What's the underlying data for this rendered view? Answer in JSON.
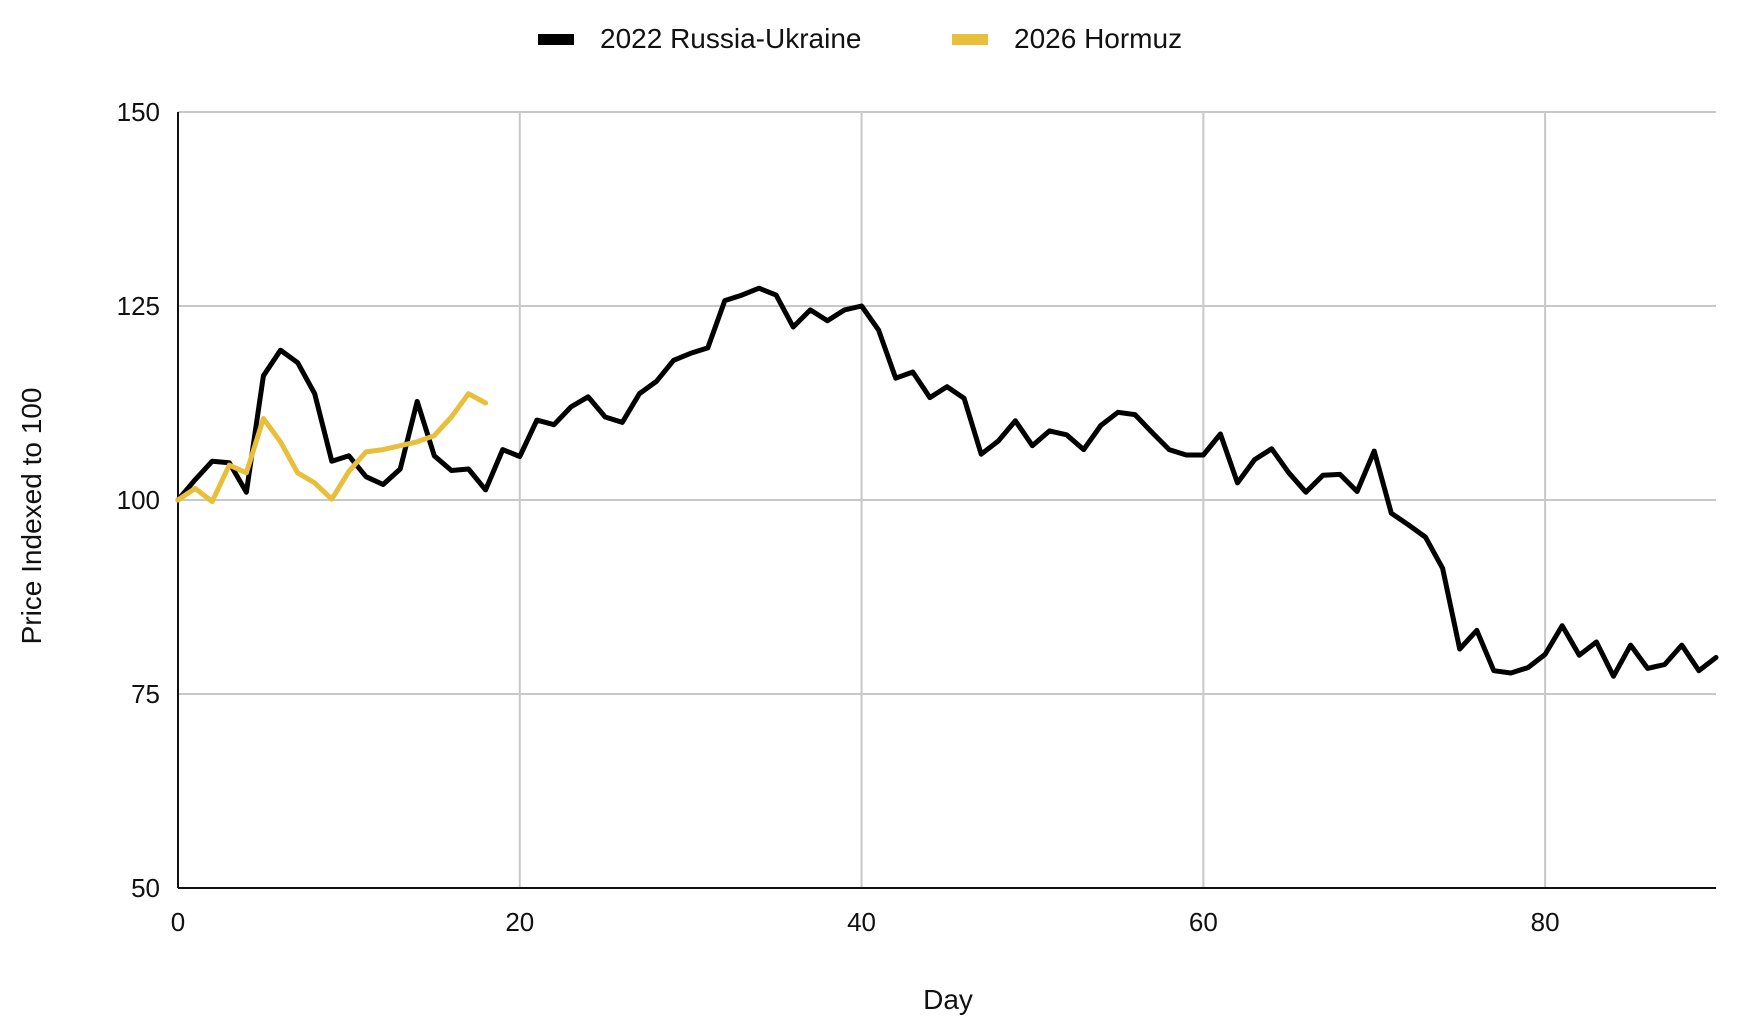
{
  "chart_data": {
    "type": "line",
    "title": "",
    "xlabel": "Day",
    "ylabel": "Price Indexed to 100",
    "xlim": [
      0,
      90
    ],
    "ylim": [
      50,
      150
    ],
    "x_ticks": [
      0,
      20,
      40,
      60,
      80
    ],
    "y_ticks": [
      50,
      75,
      100,
      125,
      150
    ],
    "grid": true,
    "legend_position": "top-center",
    "series": [
      {
        "name": "2022 Russia-Ukraine",
        "color": "#000000",
        "x": [
          0,
          1,
          2,
          3,
          4,
          5,
          6,
          7,
          8,
          9,
          10,
          11,
          12,
          13,
          14,
          15,
          16,
          17,
          18,
          19,
          20,
          21,
          22,
          23,
          24,
          25,
          26,
          27,
          28,
          29,
          30,
          31,
          32,
          33,
          34,
          35,
          36,
          37,
          38,
          39,
          40,
          41,
          42,
          43,
          44,
          45,
          46,
          47,
          48,
          49,
          50,
          51,
          52,
          53,
          54,
          55,
          56,
          57,
          58,
          59,
          60,
          61,
          62,
          63,
          64,
          65,
          66,
          67,
          68,
          69,
          70,
          71,
          72,
          73,
          74,
          75,
          76,
          77,
          78,
          79,
          80,
          81,
          82,
          83,
          84,
          85,
          86,
          87,
          88,
          89,
          90
        ],
        "values": [
          100,
          102.6,
          105,
          104.8,
          101,
          116,
          119.3,
          117.7,
          113.7,
          105,
          105.7,
          103,
          102,
          104,
          112.7,
          105.7,
          103.8,
          104,
          101.3,
          106.5,
          105.6,
          110.3,
          109.7,
          112,
          113.3,
          110.7,
          110,
          113.7,
          115.3,
          118,
          118.9,
          119.6,
          125.7,
          126.4,
          127.3,
          126.4,
          122.3,
          124.5,
          123.1,
          124.5,
          125,
          121.9,
          115.7,
          116.5,
          113.2,
          114.6,
          113.1,
          105.9,
          107.6,
          110.2,
          107,
          108.9,
          108.4,
          106.5,
          109.6,
          111.3,
          111,
          108.7,
          106.5,
          105.8,
          105.8,
          108.5,
          102.2,
          105.2,
          106.6,
          103.5,
          101,
          103.2,
          103.3,
          101.1,
          106.3,
          98.3,
          96.8,
          95.2,
          91.2,
          80.8,
          83.2,
          78,
          77.7,
          78.4,
          80.1,
          83.8,
          80,
          81.7,
          77.3,
          81.3,
          78.3,
          78.8,
          81.3,
          78,
          79.7
        ]
      },
      {
        "name": "2026 Hormuz",
        "color": "#E8BE3A",
        "x": [
          0,
          1,
          2,
          3,
          4,
          5,
          6,
          7,
          8,
          9,
          10,
          11,
          12,
          13,
          14,
          15,
          16,
          17,
          18
        ],
        "values": [
          100,
          101.5,
          99.8,
          104.5,
          103.5,
          110.5,
          107.5,
          103.5,
          102.2,
          100.1,
          103.7,
          106.2,
          106.5,
          107,
          107.5,
          108.3,
          110.7,
          113.7,
          112.5
        ]
      }
    ]
  }
}
